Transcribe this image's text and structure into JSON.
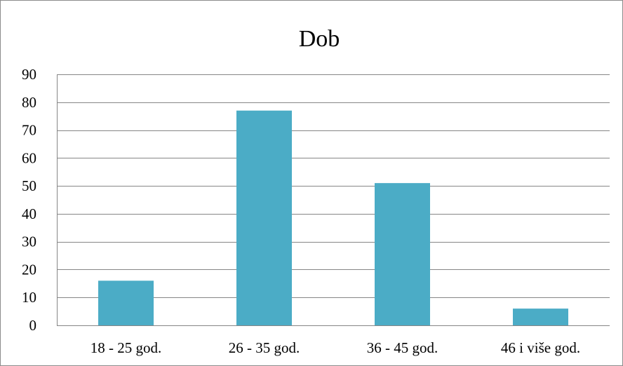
{
  "chart_data": {
    "type": "bar",
    "title": "Dob",
    "categories": [
      "18 - 25 god.",
      "26 - 35 god.",
      "36 - 45 god.",
      "46 i više god."
    ],
    "values": [
      16,
      77,
      51,
      6
    ],
    "ylim": [
      0,
      90
    ],
    "yticks": [
      0,
      10,
      20,
      30,
      40,
      50,
      60,
      70,
      80,
      90
    ],
    "grid": true,
    "legend": "none",
    "colors": {
      "bar": "#4bacc6",
      "grid": "#868686",
      "axis": "#868686",
      "border": "#8c8c8c"
    }
  }
}
